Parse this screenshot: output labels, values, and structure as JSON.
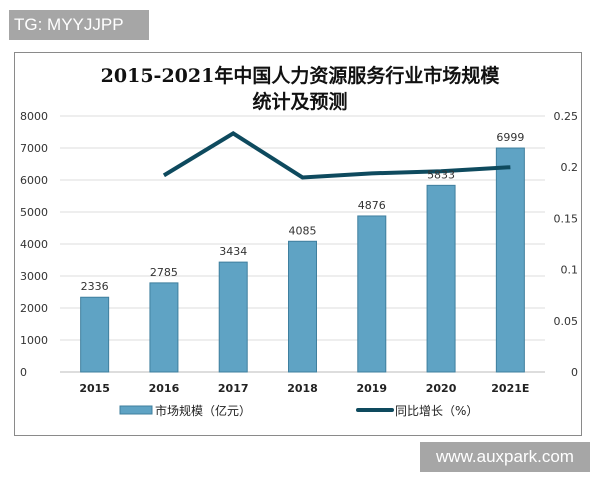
{
  "watermarks": {
    "top": "TG: MYYJJPP",
    "bottom": "www.auxpark.com"
  },
  "chart_data": {
    "type": "bar+line",
    "title_line1": "2015-2021年中国人力资源服务行业市场规模",
    "title_line2": "统计及预测",
    "categories": [
      "2015",
      "2016",
      "2017",
      "2018",
      "2019",
      "2020",
      "2021E"
    ],
    "series": [
      {
        "name": "市场规模（亿元）",
        "type": "bar",
        "axis": "left",
        "values": [
          2336,
          2785,
          3434,
          4085,
          4876,
          5833,
          6999
        ],
        "color": "#5fa3c4"
      },
      {
        "name": "同比增长（%）",
        "type": "line",
        "axis": "right",
        "values": [
          null,
          0.192,
          0.233,
          0.19,
          0.194,
          0.196,
          0.2
        ],
        "color": "#0e4a5e"
      }
    ],
    "left_axis": {
      "ylim": [
        0,
        8000
      ],
      "ticks": [
        "0",
        "1000",
        "2000",
        "3000",
        "4000",
        "5000",
        "6000",
        "7000",
        "8000"
      ]
    },
    "right_axis": {
      "ylim": [
        0,
        0.25
      ],
      "ticks": [
        "0",
        "0.05",
        "0.1",
        "0.15",
        "0.2",
        "0.25"
      ]
    },
    "grid": true,
    "legend_position": "bottom"
  }
}
